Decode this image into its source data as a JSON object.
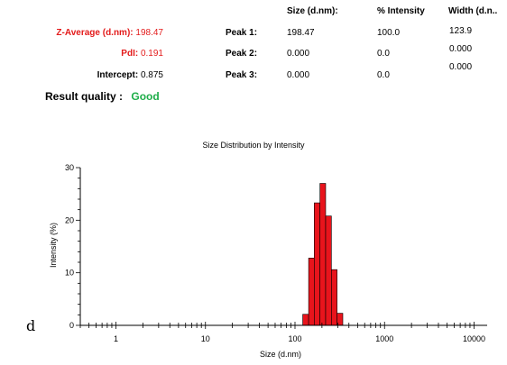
{
  "results": {
    "z_average_label": "Z-Average (d.nm):",
    "z_average_value": "198.47",
    "pdi_label": "PdI:",
    "pdi_value": "0.191",
    "intercept_label": "Intercept:",
    "intercept_value": "0.875",
    "quality_label": "Result quality :",
    "quality_value": "Good",
    "accent_color": "#e31b1b",
    "good_color": "#1fae4a"
  },
  "peaks_table": {
    "headers": [
      "Size (d.nm):",
      "% Intensity",
      "Width (d.n.."
    ],
    "rows": [
      {
        "label": "Peak 1:",
        "size": "198.47",
        "intensity": "100.0",
        "width": "123.9"
      },
      {
        "label": "Peak 2:",
        "size": "0.000",
        "intensity": "0.0",
        "width": "0.000"
      },
      {
        "label": "Peak 3:",
        "size": "0.000",
        "intensity": "0.0",
        "width": "0.000"
      }
    ]
  },
  "panel_label": "d",
  "chart_data": {
    "type": "bar",
    "title": "Size Distribution by Intensity",
    "xlabel": "Size (d.nm)",
    "ylabel": "Intensity (%)",
    "x_scale": "log",
    "xlim": [
      0.4,
      14000
    ],
    "ylim": [
      0,
      30
    ],
    "x_ticks": [
      {
        "value": 1,
        "label": "1"
      },
      {
        "value": 10,
        "label": "10"
      },
      {
        "value": 100,
        "label": "100"
      },
      {
        "value": 1000,
        "label": "1000"
      },
      {
        "value": 10000,
        "label": "10000"
      }
    ],
    "y_ticks": [
      {
        "value": 0,
        "label": "0"
      },
      {
        "value": 10,
        "label": "10"
      },
      {
        "value": 20,
        "label": "20"
      },
      {
        "value": 30,
        "label": "30"
      }
    ],
    "bar_color": "#e8141c",
    "grid": false,
    "bins": [
      {
        "x0": 122,
        "x1": 142,
        "value": 2.1
      },
      {
        "x0": 142,
        "x1": 164,
        "value": 12.8
      },
      {
        "x0": 164,
        "x1": 190,
        "value": 23.3
      },
      {
        "x0": 190,
        "x1": 220,
        "value": 27.0
      },
      {
        "x0": 220,
        "x1": 255,
        "value": 20.8
      },
      {
        "x0": 255,
        "x1": 295,
        "value": 10.6
      },
      {
        "x0": 295,
        "x1": 342,
        "value": 2.3
      }
    ]
  }
}
